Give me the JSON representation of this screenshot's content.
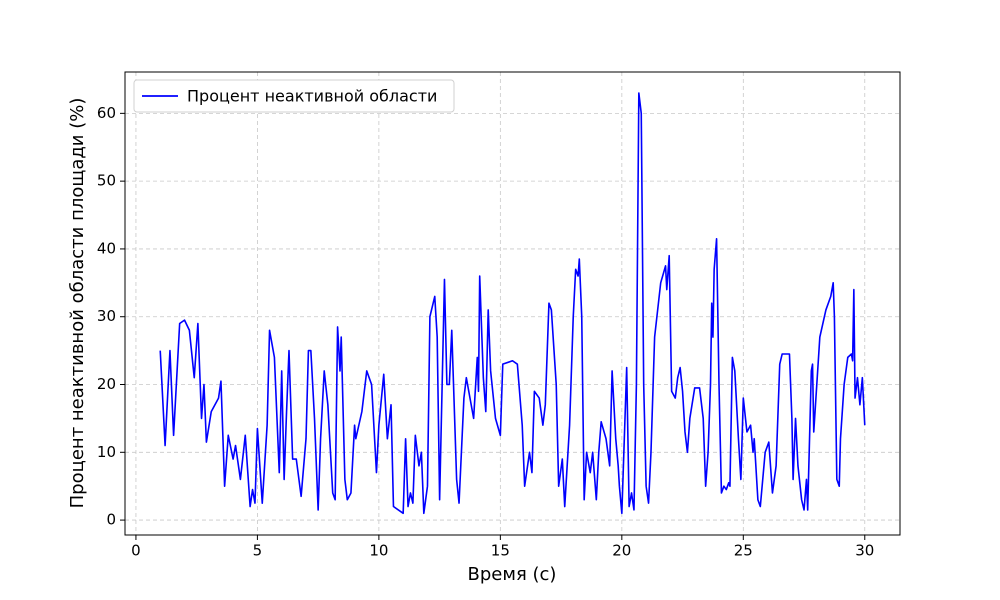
{
  "chart_data": {
    "type": "line",
    "xlabel": "Время (с)",
    "ylabel": "Процент неактивной области площади (%)",
    "xlim": [
      -0.45,
      31.45
    ],
    "ylim": [
      -2.2,
      66.1
    ],
    "xticks": [
      0,
      5,
      10,
      15,
      20,
      25,
      30
    ],
    "yticks": [
      0,
      10,
      20,
      30,
      40,
      50,
      60
    ],
    "grid": true,
    "legend": "upper left",
    "x": [
      1,
      1.2,
      1.4,
      1.55,
      1.8,
      2,
      2.2,
      2.4,
      2.55,
      2.7,
      2.8,
      2.9,
      3.1,
      3.4,
      3.5,
      3.65,
      3.8,
      4,
      4.1,
      4.3,
      4.5,
      4.7,
      4.8,
      4.9,
      5,
      5.2,
      5.4,
      5.5,
      5.7,
      5.9,
      6,
      6.1,
      6.2,
      6.3,
      6.45,
      6.6,
      6.8,
      7,
      7.1,
      7.2,
      7.35,
      7.5,
      7.6,
      7.75,
      7.9,
      8.1,
      8.2,
      8.3,
      8.4,
      8.45,
      8.6,
      8.7,
      8.85,
      9,
      9.05,
      9.3,
      9.5,
      9.7,
      9.9,
      10,
      10.2,
      10.35,
      10.5,
      10.6,
      11,
      11.1,
      11.2,
      11.3,
      11.4,
      11.5,
      11.65,
      11.75,
      11.85,
      12,
      12.1,
      12.3,
      12.4,
      12.5,
      12.7,
      12.8,
      12.9,
      13,
      13.2,
      13.3,
      13.5,
      13.6,
      13.8,
      13.9,
      14.05,
      14.1,
      14.15,
      14.3,
      14.4,
      14.5,
      14.6,
      14.8,
      15,
      15.1,
      15.5,
      15.7,
      15.9,
      16,
      16.2,
      16.3,
      16.4,
      16.6,
      16.75,
      16.85,
      17,
      17.1,
      17.3,
      17.4,
      17.55,
      17.65,
      17.85,
      18,
      18.1,
      18.2,
      18.25,
      18.35,
      18.45,
      18.55,
      18.7,
      18.8,
      18.95,
      19.05,
      19.15,
      19.35,
      19.5,
      19.6,
      19.75,
      19.85,
      19.9,
      20,
      20.2,
      20.3,
      20.4,
      20.5,
      20.6,
      20.7,
      20.8,
      20.9,
      21,
      21.1,
      21.2,
      21.35,
      21.6,
      21.8,
      21.85,
      21.95,
      22.05,
      22.2,
      22.3,
      22.4,
      22.5,
      22.6,
      22.7,
      22.8,
      23,
      23.2,
      23.35,
      23.45,
      23.55,
      23.65,
      23.7,
      23.75,
      23.8,
      23.9,
      24,
      24.1,
      24.2,
      24.3,
      24.4,
      24.45,
      24.55,
      24.65,
      24.8,
      24.9,
      25,
      25.15,
      25.3,
      25.4,
      25.45,
      25.6,
      25.7,
      25.9,
      26.05,
      26.2,
      26.35,
      26.5,
      26.6,
      26.9,
      27,
      27.05,
      27.15,
      27.25,
      27.4,
      27.5,
      27.6,
      27.65,
      27.8,
      27.85,
      27.9,
      28.15,
      28.4,
      28.6,
      28.7,
      28.75,
      28.85,
      28.95,
      29,
      29.15,
      29.3,
      29.45,
      29.5,
      29.55,
      29.6,
      29.7,
      29.8,
      29.9,
      30
    ],
    "series": [
      {
        "name": "Процент неактивной области",
        "color": "#0000ff",
        "values": [
          25,
          11,
          25,
          12.5,
          29,
          29.5,
          28,
          21,
          29,
          15,
          20,
          11.5,
          16,
          18,
          20.5,
          5,
          12.5,
          9,
          11,
          6,
          12.5,
          2,
          4.5,
          2.5,
          13.5,
          2.5,
          14,
          28,
          24,
          7,
          22,
          6,
          16,
          25,
          9,
          9,
          3.5,
          12,
          25,
          25,
          15,
          1.5,
          12,
          22,
          17,
          4,
          3,
          28.5,
          22,
          27,
          6,
          3,
          4,
          14,
          12,
          16,
          22,
          20,
          7,
          14,
          21.5,
          12,
          17,
          2,
          1,
          12,
          2,
          4,
          2.5,
          12.5,
          8,
          10,
          1,
          5,
          30,
          33,
          27,
          3,
          35.5,
          20,
          20,
          28,
          6,
          2.5,
          18,
          21,
          17,
          15,
          24,
          19,
          36,
          21,
          16,
          31,
          22,
          15,
          12.5,
          23,
          23.5,
          23,
          14,
          5,
          10,
          7,
          19,
          18,
          14,
          17,
          32,
          31,
          20,
          5,
          9,
          2,
          14,
          30,
          37,
          36,
          38.5,
          30,
          3,
          10,
          7,
          10,
          3,
          10,
          14.5,
          12,
          8,
          22,
          12,
          8,
          5,
          1,
          22.5,
          2,
          4,
          1.5,
          20,
          63,
          60,
          20,
          5,
          2.5,
          10,
          27,
          35,
          37.5,
          34,
          39,
          19,
          18,
          21,
          22.5,
          19,
          13,
          10,
          15,
          19.5,
          19.5,
          15,
          5,
          10,
          20,
          32,
          27,
          37,
          41.5,
          20,
          4,
          5,
          4.5,
          5.5,
          5,
          24,
          22,
          12,
          6,
          18,
          13,
          14,
          10,
          12,
          3,
          2,
          10,
          11.5,
          4,
          8,
          23,
          24.5,
          24.5,
          15,
          6,
          15,
          8,
          3,
          1.5,
          6,
          1.5,
          22,
          23,
          13,
          27,
          31,
          33,
          35,
          30,
          6,
          5,
          12,
          20,
          24,
          24.5,
          23.5,
          34,
          18,
          21,
          17,
          21,
          14
        ]
      }
    ]
  }
}
